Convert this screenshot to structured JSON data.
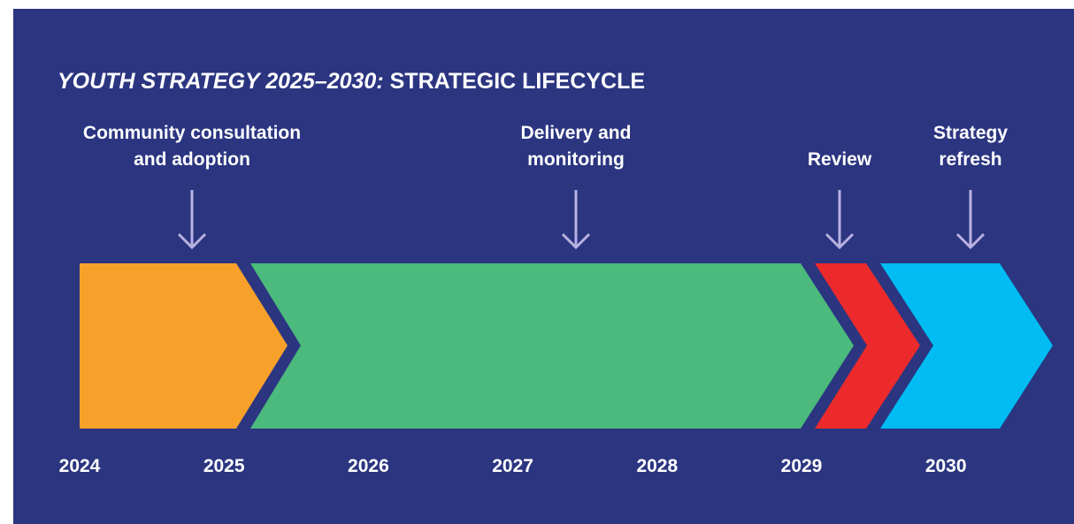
{
  "title": {
    "emphasis": "YOUTH STRATEGY 2025–2030:",
    "rest": "STRATEGIC LIFECYCLE"
  },
  "phases": [
    {
      "lines": [
        "Community consultation",
        "and adoption"
      ]
    },
    {
      "lines": [
        "Delivery and",
        "monitoring"
      ]
    },
    {
      "lines": [
        "Review"
      ]
    },
    {
      "lines": [
        "Strategy",
        "refresh"
      ]
    }
  ],
  "years": [
    "2024",
    "2025",
    "2026",
    "2027",
    "2028",
    "2029",
    "2030"
  ]
}
